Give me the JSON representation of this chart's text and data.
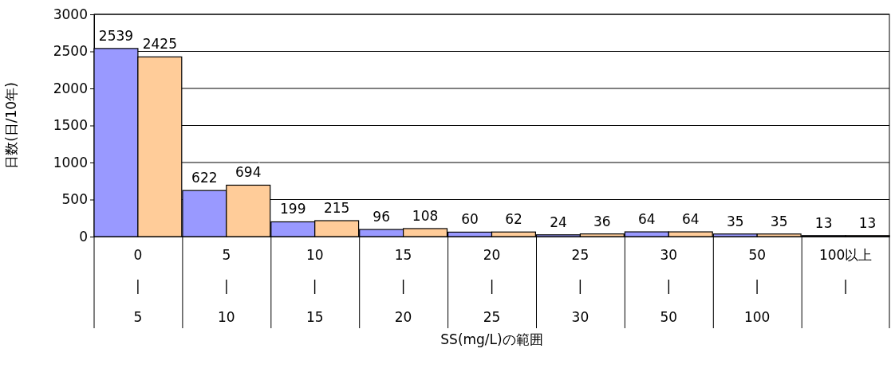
{
  "chart_data": {
    "type": "bar",
    "xlabel": "SS(mg/L)の範囲",
    "ylabel": "日数(日/10年)",
    "categories": [
      "0\n|\n5",
      "5\n|\n10",
      "10\n|\n15",
      "15\n|\n20",
      "20\n|\n25",
      "25\n|\n30",
      "30\n|\n50",
      "50\n|\n100",
      "100以上\n|"
    ],
    "series": [
      {
        "color": "#9999ff",
        "values": [
          2539,
          622,
          199,
          96,
          60,
          24,
          64,
          35,
          13
        ]
      },
      {
        "color": "#ffcc99",
        "values": [
          2425,
          694,
          215,
          108,
          62,
          36,
          64,
          35,
          13
        ]
      }
    ],
    "ylim": [
      0,
      3000
    ],
    "yticks": [
      0,
      500,
      1000,
      1500,
      2000,
      2500,
      3000
    ],
    "grid": "y",
    "data_labels": true
  }
}
